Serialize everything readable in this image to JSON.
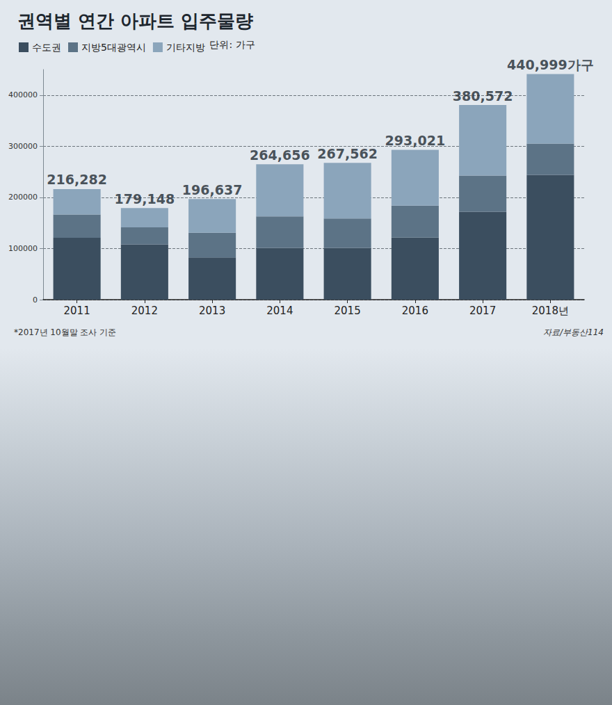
{
  "chart_data": {
    "type": "bar",
    "title": "권역별 연간 아파트 입주물량",
    "annotations": {
      "unit": "단위: 가구",
      "note": "*2017년 10월말 조사 기준",
      "source": "자료/부동산114"
    },
    "categories": [
      "2011",
      "2012",
      "2013",
      "2014",
      "2015",
      "2016",
      "2017",
      "2018년"
    ],
    "series": [
      {
        "name": "수도권",
        "color": "#3b4e5f",
        "values": [
          121000,
          108000,
          82700,
          101300,
          101300,
          121300,
          172000,
          244000
        ]
      },
      {
        "name": "지방5대광역시",
        "color": "#5c7386",
        "values": [
          45700,
          33300,
          48000,
          61400,
          57400,
          62700,
          70700,
          61300
        ]
      },
      {
        "name": "기타지방",
        "color": "#8ba5bb",
        "values": [
          49582,
          37848,
          65937,
          101956,
          108862,
          109021,
          137872,
          135699
        ]
      }
    ],
    "totals": [
      216282,
      179148,
      196637,
      264656,
      267562,
      293021,
      380572,
      440999
    ],
    "total_labels": [
      "216,282",
      "179,148",
      "196,637",
      "264,656",
      "267,562",
      "293,021",
      "380,572",
      "440,999가구"
    ],
    "ylim": [
      0,
      450000
    ],
    "yticks": [
      0,
      100000,
      200000,
      300000,
      400000
    ],
    "stacked": true,
    "grid": true,
    "legend": "top-left"
  }
}
